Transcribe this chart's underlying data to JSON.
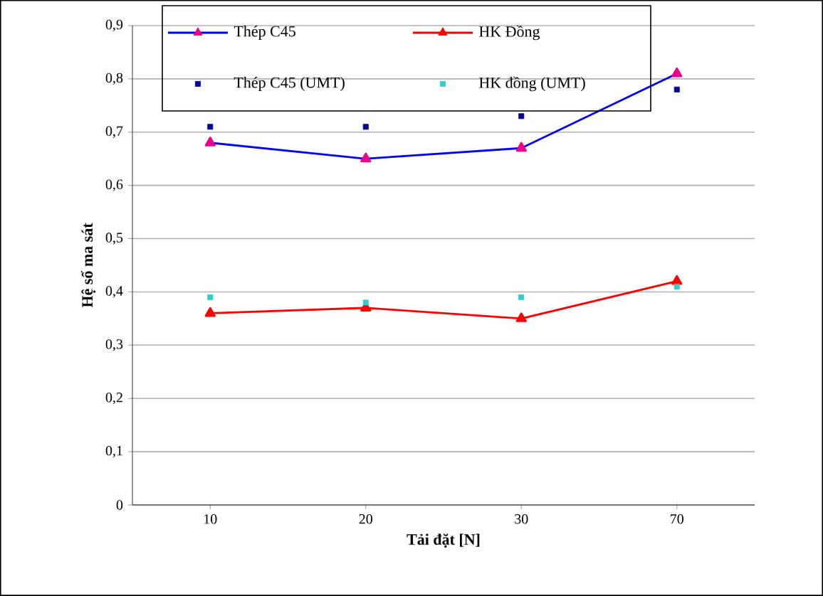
{
  "chart_data": {
    "type": "line",
    "xlabel": "Tải đặt [N]",
    "ylabel": "Hệ số ma sát",
    "categories": [
      "10",
      "20",
      "30",
      "70"
    ],
    "ylim": [
      0,
      0.9
    ],
    "yticks": [
      {
        "value": 0,
        "label": "0"
      },
      {
        "value": 0.1,
        "label": "0,1"
      },
      {
        "value": 0.2,
        "label": "0,2"
      },
      {
        "value": 0.3,
        "label": "0,3"
      },
      {
        "value": 0.4,
        "label": "0,4"
      },
      {
        "value": 0.5,
        "label": "0,5"
      },
      {
        "value": 0.6,
        "label": "0,6"
      },
      {
        "value": 0.7,
        "label": "0,7"
      },
      {
        "value": 0.8,
        "label": "0,8"
      },
      {
        "value": 0.9,
        "label": "0,9"
      }
    ],
    "grid": "y",
    "legend": "top left",
    "series": [
      {
        "name": "Thép C45",
        "color": "#0000ff",
        "marker": "triangle",
        "values": [
          0.68,
          0.65,
          0.67,
          0.81
        ]
      },
      {
        "name": "HK Đồng",
        "color": "#ff0000",
        "marker": "triangle",
        "values": [
          0.36,
          0.37,
          0.35,
          0.42
        ]
      },
      {
        "name": "Thép C45 (UMT)",
        "type": "scatter",
        "color": "#000099",
        "marker": "square",
        "values": [
          0.71,
          0.71,
          0.73,
          0.78
        ]
      },
      {
        "name": "HK đồng (UMT)",
        "type": "scatter",
        "color": "#33cccc",
        "marker": "square",
        "values": [
          0.39,
          0.38,
          0.39,
          0.41
        ]
      }
    ]
  }
}
